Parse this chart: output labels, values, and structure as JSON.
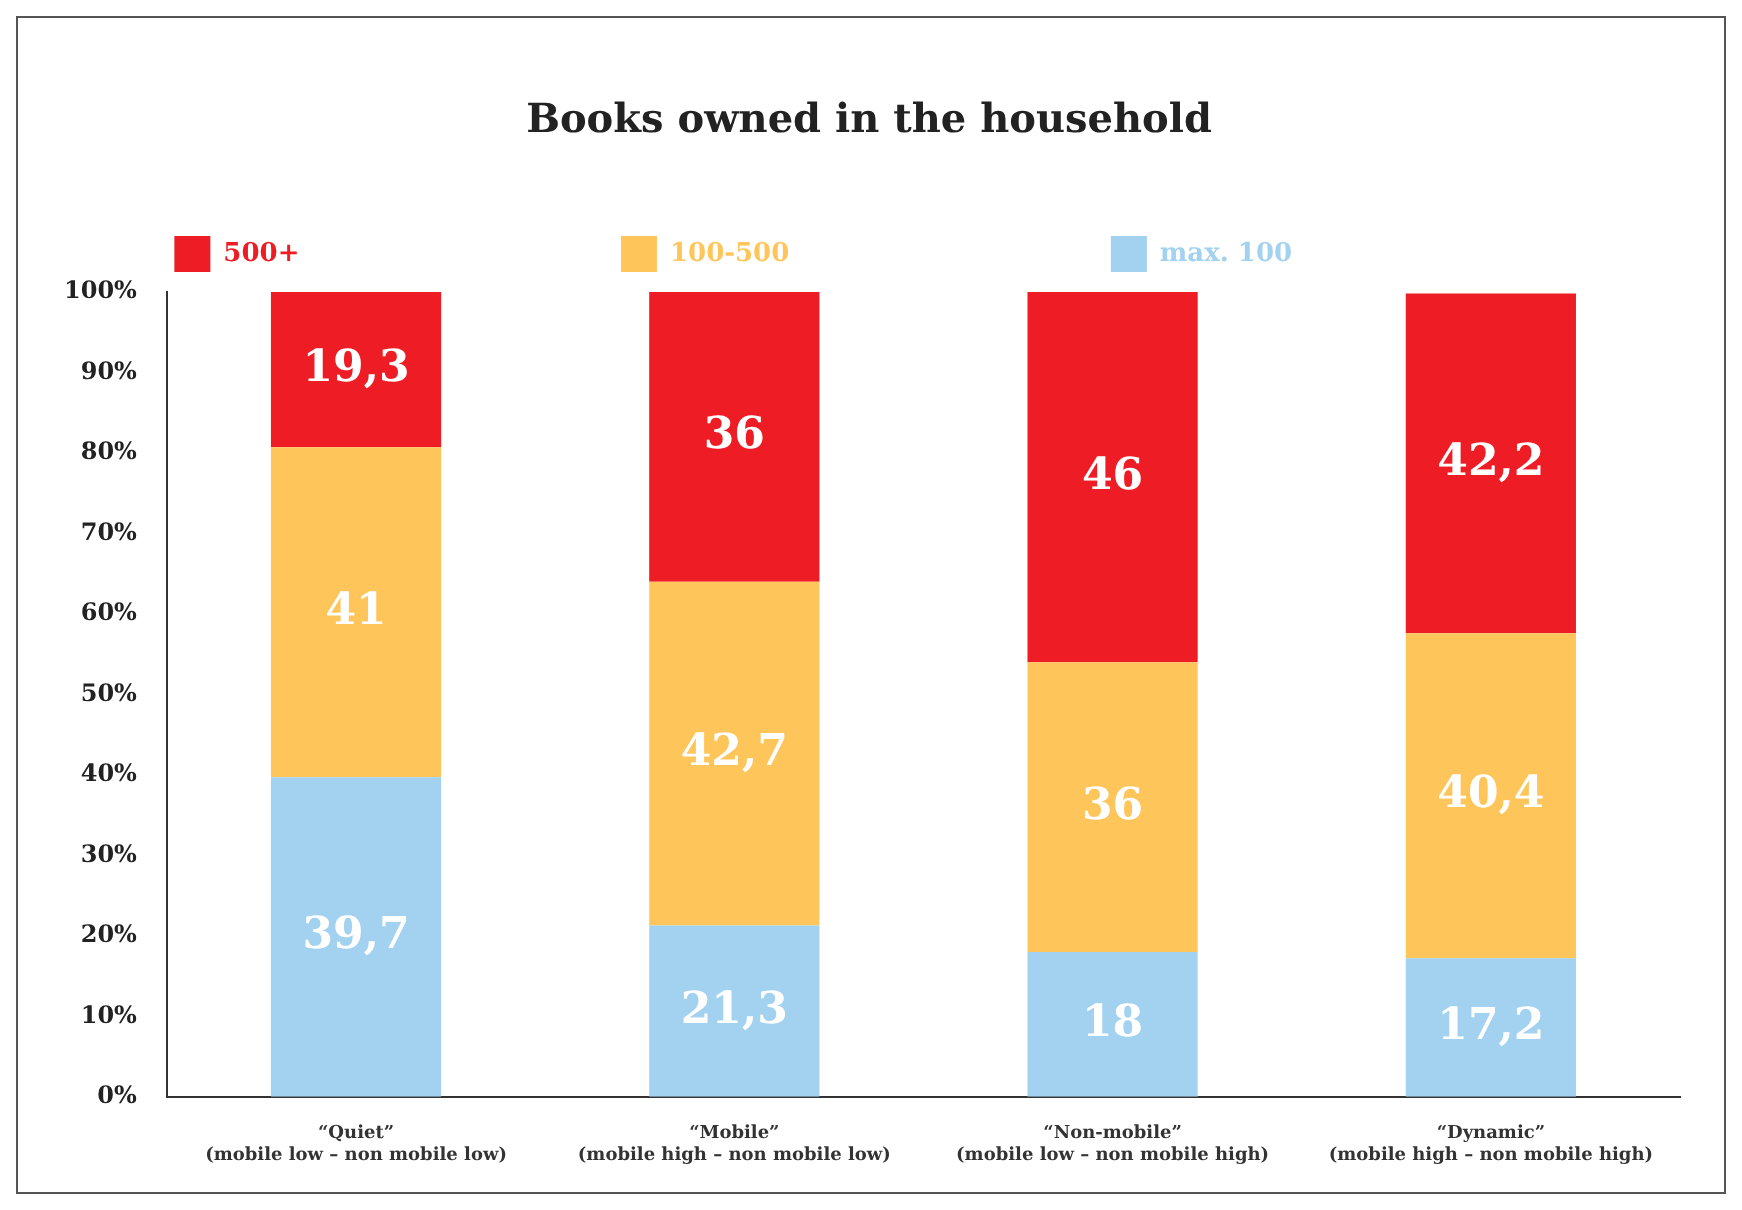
{
  "chart_data": {
    "type": "bar",
    "title": "Books owned in the household",
    "stacked": true,
    "categories": [
      "“Quiet”\n(mobile low – non mobile low)",
      "“Mobile”\n(mobile high – non mobile low)",
      "“Non-mobile”\n(mobile low – non mobile high)",
      "“Dynamic”\n(mobile high – non mobile high)"
    ],
    "series": [
      {
        "name": "max. 100",
        "color": "#a3d1f0",
        "values": [
          39.7,
          21.3,
          18,
          17.2
        ],
        "value_labels": [
          "39,7",
          "21,3",
          "18",
          "17,2"
        ]
      },
      {
        "name": "100-500",
        "color": "#fec55a",
        "values": [
          41,
          42.7,
          36,
          40.4
        ],
        "value_labels": [
          "41",
          "42,7",
          "36",
          "40,4"
        ]
      },
      {
        "name": "500+",
        "color": "#ee1c25",
        "values": [
          19.3,
          36,
          46,
          42.2
        ],
        "value_labels": [
          "19,3",
          "36",
          "46",
          "42,2"
        ]
      }
    ],
    "ylim": [
      0,
      100
    ],
    "yticks": [
      {
        "value": 0,
        "label": "0%"
      },
      {
        "value": 10,
        "label": "10%"
      },
      {
        "value": 20,
        "label": "20%"
      },
      {
        "value": 30,
        "label": "30%"
      },
      {
        "value": 40,
        "label": "40%"
      },
      {
        "value": 50,
        "label": "50%"
      },
      {
        "value": 60,
        "label": "60%"
      },
      {
        "value": 70,
        "label": "70%"
      },
      {
        "value": 80,
        "label": "80%"
      },
      {
        "value": 90,
        "label": "90%"
      },
      {
        "value": 100,
        "label": "100%"
      }
    ],
    "grid": false,
    "legend": "top"
  }
}
